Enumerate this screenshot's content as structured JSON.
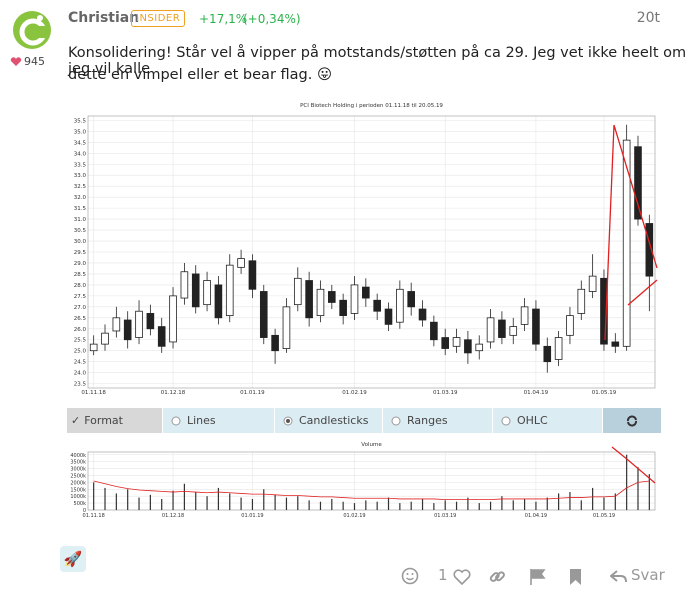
{
  "post": {
    "author": "Christian",
    "badge": "INSIDER",
    "change": "+17,1%",
    "change_pct": "(+0,34%)",
    "time": "20t",
    "likes": "945",
    "text_line1": "Konsolidering! Står vel å vipper på motstands/støtten på ca 29. Jeg vet ikke heelt om jeg vil kalle",
    "text_line2": "dette en vimpel eller et bear flag. 😛"
  },
  "toolbar": {
    "format": "Format",
    "options": [
      "Lines",
      "Candlesticks",
      "Ranges",
      "OHLC"
    ],
    "selected": 1
  },
  "footer": {
    "like_count": "1",
    "reply": "Svar"
  },
  "chart_data": [
    {
      "type": "candlestick",
      "title": "PCI Biotech Holding i perioden 01.11.18 til 20.05.19",
      "categories": [
        "01.11.18",
        null,
        null,
        null,
        null,
        null,
        null,
        "01.12.18",
        null,
        null,
        null,
        null,
        null,
        null,
        "01.01.19",
        null,
        null,
        null,
        null,
        null,
        null,
        null,
        null,
        "01.02.19",
        null,
        null,
        null,
        null,
        null,
        null,
        null,
        "01.03.19",
        null,
        null,
        null,
        null,
        null,
        null,
        null,
        "01.04.19",
        null,
        null,
        null,
        null,
        null,
        "01.05.19",
        null,
        null,
        null,
        null
      ],
      "open": [
        25.0,
        25.3,
        25.9,
        26.4,
        25.6,
        26.7,
        26.1,
        25.4,
        27.4,
        28.5,
        27.1,
        28.0,
        26.6,
        28.8,
        29.1,
        27.7,
        25.7,
        25.1,
        27.1,
        28.2,
        26.6,
        27.7,
        27.3,
        26.7,
        27.9,
        27.3,
        26.9,
        26.3,
        27.7,
        26.9,
        26.3,
        25.6,
        25.2,
        25.5,
        25.0,
        25.4,
        26.4,
        25.7,
        26.2,
        26.9,
        25.2,
        24.6,
        25.7,
        26.7,
        27.7,
        28.3,
        25.4,
        25.2,
        34.3,
        30.8
      ],
      "high": [
        25.7,
        26.2,
        27.0,
        26.8,
        27.3,
        27.1,
        26.5,
        27.9,
        29.0,
        28.9,
        28.6,
        28.4,
        29.4,
        29.6,
        29.4,
        28.0,
        26.0,
        27.4,
        28.8,
        28.6,
        28.2,
        28.0,
        27.6,
        28.4,
        28.3,
        27.6,
        27.2,
        28.2,
        28.1,
        27.3,
        26.6,
        26.0,
        26.0,
        25.9,
        25.7,
        26.9,
        26.8,
        26.5,
        27.4,
        27.3,
        25.6,
        25.9,
        27.0,
        28.2,
        29.4,
        28.7,
        25.8,
        35.3,
        34.8,
        31.2
      ],
      "low": [
        24.8,
        25.0,
        25.6,
        25.1,
        25.3,
        25.7,
        24.9,
        25.1,
        27.1,
        26.7,
        26.8,
        26.2,
        26.3,
        28.5,
        27.4,
        25.3,
        24.4,
        24.9,
        26.8,
        26.1,
        26.3,
        26.9,
        26.2,
        26.4,
        27.0,
        26.4,
        25.9,
        26.0,
        26.6,
        26.1,
        25.2,
        24.8,
        24.9,
        24.4,
        24.6,
        25.1,
        25.3,
        25.3,
        25.9,
        25.0,
        24.0,
        24.3,
        25.3,
        26.4,
        27.4,
        25.0,
        24.9,
        25.0,
        30.7,
        26.8
      ],
      "close": [
        25.3,
        25.8,
        26.5,
        25.5,
        26.8,
        26.0,
        25.2,
        27.5,
        28.6,
        27.0,
        28.2,
        26.5,
        28.9,
        29.2,
        27.8,
        25.6,
        25.0,
        27.0,
        28.3,
        26.5,
        27.8,
        27.2,
        26.6,
        28.0,
        27.4,
        26.8,
        26.2,
        27.8,
        27.0,
        26.4,
        25.5,
        25.1,
        25.6,
        24.9,
        25.3,
        26.5,
        25.6,
        26.1,
        27.0,
        25.3,
        24.5,
        25.6,
        26.6,
        27.8,
        28.4,
        25.3,
        25.2,
        34.6,
        31.0,
        28.4
      ],
      "ylim": [
        23.3,
        35.7
      ],
      "yticks": [
        23.5,
        {
          "value": 24,
          "label": "24.0"
        },
        24.5,
        {
          "value": 25,
          "label": "25.0"
        },
        25.5,
        {
          "value": 26,
          "label": "26.0"
        },
        26.5,
        {
          "value": 27,
          "label": "27.0"
        },
        27.5,
        {
          "value": 28,
          "label": "28.0"
        },
        28.5,
        {
          "value": 29,
          "label": "29.0"
        },
        29.5,
        {
          "value": 30,
          "label": "30.0"
        },
        30.5,
        {
          "value": 31,
          "label": "31.0"
        },
        31.5,
        {
          "value": 32,
          "label": "32.0"
        },
        32.5,
        {
          "value": 33,
          "label": "33.0"
        },
        33.5,
        {
          "value": 34,
          "label": "34.0"
        },
        34.5,
        {
          "value": 35,
          "label": "35.0"
        },
        35.5
      ],
      "grid": true
    },
    {
      "type": "bar",
      "title": "Volume",
      "categories": [
        "01.11.18",
        null,
        null,
        null,
        null,
        null,
        null,
        "01.12.18",
        null,
        null,
        null,
        null,
        null,
        null,
        "01.01.19",
        null,
        null,
        null,
        null,
        null,
        null,
        null,
        null,
        "01.02.19",
        null,
        null,
        null,
        null,
        null,
        null,
        null,
        "01.03.19",
        null,
        null,
        null,
        null,
        null,
        null,
        null,
        "01.04.19",
        null,
        null,
        null,
        null,
        null,
        "01.05.19",
        null,
        null,
        null,
        null
      ],
      "values": [
        2000000,
        1600000,
        1200000,
        1500000,
        900000,
        1100000,
        800000,
        1400000,
        1900000,
        1300000,
        1000000,
        1600000,
        1200000,
        900000,
        800000,
        1500000,
        1100000,
        900000,
        1000000,
        700000,
        600000,
        800000,
        600000,
        500000,
        700000,
        600000,
        900000,
        500000,
        600000,
        800000,
        500000,
        700000,
        600000,
        900000,
        500000,
        600000,
        1000000,
        700000,
        800000,
        600000,
        900000,
        1200000,
        1300000,
        700000,
        1600000,
        900000,
        1200000,
        4000000,
        3100000,
        2600000
      ],
      "color": "#333333",
      "line": {
        "color": "#e02020",
        "values": [
          2100000,
          1900000,
          1700000,
          1550000,
          1450000,
          1400000,
          1350000,
          1300000,
          1350000,
          1300000,
          1250000,
          1300000,
          1250000,
          1200000,
          1150000,
          1150000,
          1100000,
          1050000,
          1050000,
          1000000,
          950000,
          950000,
          900000,
          850000,
          850000,
          850000,
          850000,
          800000,
          800000,
          800000,
          800000,
          750000,
          750000,
          750000,
          750000,
          750000,
          800000,
          800000,
          800000,
          800000,
          800000,
          850000,
          900000,
          900000,
          950000,
          950000,
          1000000,
          1600000,
          2000000,
          2100000
        ]
      },
      "ylim": [
        0,
        4200000
      ],
      "yticks": [
        {
          "value": 0,
          "label": "0"
        },
        {
          "value": 500000,
          "label": "500k"
        },
        {
          "value": 1000000,
          "label": "1000k"
        },
        {
          "value": 1500000,
          "label": "1500k"
        },
        {
          "value": 2000000,
          "label": "2000k"
        },
        {
          "value": 2500000,
          "label": "2500k"
        },
        {
          "value": 3000000,
          "label": "3000k"
        },
        {
          "value": 3500000,
          "label": "3500k"
        },
        {
          "value": 4000000,
          "label": "4000k"
        }
      ],
      "grid": true
    }
  ]
}
